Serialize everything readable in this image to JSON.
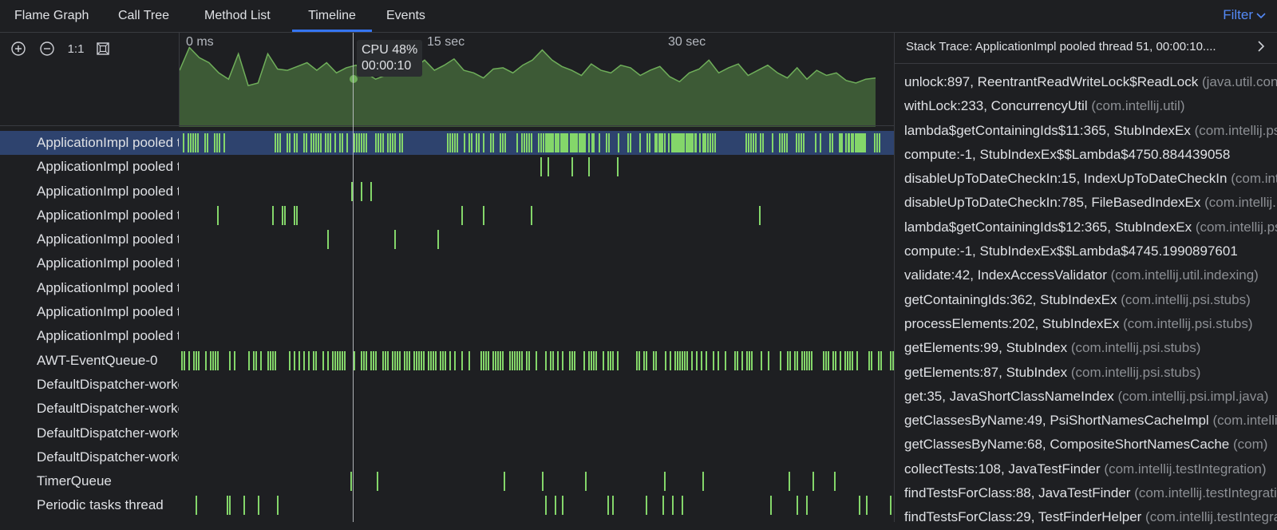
{
  "tabs": [
    {
      "label": "Flame Graph"
    },
    {
      "label": "Call Tree"
    },
    {
      "label": "Method List"
    },
    {
      "label": "Timeline",
      "active": true
    },
    {
      "label": "Events"
    }
  ],
  "filter_label": "Filter",
  "toolbar": {
    "zoom_in_icon": "plus-circle-icon",
    "zoom_out_icon": "minus-circle-icon",
    "actual_size": "1:1",
    "fit_icon": "fit-screen-icon"
  },
  "timeline": {
    "axis": {
      "start": "0 ms",
      "mid": "15 sec",
      "end": "30 sec"
    },
    "tooltip": {
      "cpu": "CPU 48%",
      "time": "00:00:10"
    },
    "cpu_series": [
      42,
      60,
      52,
      48,
      40,
      35,
      55,
      30,
      32,
      55,
      43,
      42,
      45,
      48,
      42,
      48,
      40,
      44,
      46,
      40,
      35,
      38,
      42,
      43,
      44,
      50,
      42,
      46,
      51,
      42,
      40,
      36,
      43,
      44,
      40,
      46,
      50,
      58,
      50,
      45,
      42,
      38,
      47,
      42,
      40,
      46,
      44,
      38,
      42,
      45,
      37,
      33,
      40,
      43,
      50,
      40,
      44,
      47,
      38,
      42,
      46,
      40,
      36,
      44,
      35,
      42,
      38,
      40,
      34,
      32,
      35,
      36
    ],
    "colors": {
      "fill": "#3d5a36",
      "line": "#6fae5a",
      "bar": "#84d66a",
      "selected_row": "#2e436e"
    }
  },
  "threads": [
    {
      "name": "ApplicationImpl pooled thread",
      "selected": true
    },
    {
      "name": "ApplicationImpl pooled thread"
    },
    {
      "name": "ApplicationImpl pooled thread"
    },
    {
      "name": "ApplicationImpl pooled thread"
    },
    {
      "name": "ApplicationImpl pooled thread"
    },
    {
      "name": "ApplicationImpl pooled thread"
    },
    {
      "name": "ApplicationImpl pooled thread"
    },
    {
      "name": "ApplicationImpl pooled thread"
    },
    {
      "name": "ApplicationImpl pooled thread"
    },
    {
      "name": "AWT-EventQueue-0"
    },
    {
      "name": "DefaultDispatcher-worker"
    },
    {
      "name": "DefaultDispatcher-worker"
    },
    {
      "name": "DefaultDispatcher-worker"
    },
    {
      "name": "DefaultDispatcher-worker"
    },
    {
      "name": "TimerQueue"
    },
    {
      "name": "Periodic tasks thread"
    }
  ],
  "stack_trace": {
    "title": "Stack Trace: ApplicationImpl pooled thread 51, 00:00:10....",
    "frames": [
      {
        "method": "unlock:897, ReentrantReadWriteLock$ReadLock",
        "pkg": "(java.util.concurrent.locks)"
      },
      {
        "method": "withLock:233, ConcurrencyUtil",
        "pkg": "(com.intellij.util)"
      },
      {
        "method": "lambda$getContainingIds$11:365, StubIndexEx",
        "pkg": "(com.intellij.psi.stubs)"
      },
      {
        "method": "compute:-1, StubIndexEx$$Lambda$4750.884439058",
        "pkg": ""
      },
      {
        "method": "disableUpToDateCheckIn:15, IndexUpToDateCheckIn",
        "pkg": "(com.intellij)"
      },
      {
        "method": "disableUpToDateCheckIn:785, FileBasedIndexEx",
        "pkg": "(com.intellij.util)"
      },
      {
        "method": "lambda$getContainingIds$12:365, StubIndexEx",
        "pkg": "(com.intellij.psi)"
      },
      {
        "method": "compute:-1, StubIndexEx$$Lambda$4745.1990897601",
        "pkg": ""
      },
      {
        "method": "validate:42, IndexAccessValidator",
        "pkg": "(com.intellij.util.indexing)"
      },
      {
        "method": "getContainingIds:362, StubIndexEx",
        "pkg": "(com.intellij.psi.stubs)"
      },
      {
        "method": "processElements:202, StubIndexEx",
        "pkg": "(com.intellij.psi.stubs)"
      },
      {
        "method": "getElements:99, StubIndex",
        "pkg": "(com.intellij.psi.stubs)"
      },
      {
        "method": "getElements:87, StubIndex",
        "pkg": "(com.intellij.psi.stubs)"
      },
      {
        "method": "get:35, JavaShortClassNameIndex",
        "pkg": "(com.intellij.psi.impl.java)"
      },
      {
        "method": "getClassesByName:49, PsiShortNamesCacheImpl",
        "pkg": "(com.intellij)"
      },
      {
        "method": "getClassesByName:68, CompositeShortNamesCache",
        "pkg": "(com)"
      },
      {
        "method": "collectTests:108, JavaTestFinder",
        "pkg": "(com.intellij.testIntegration)"
      },
      {
        "method": "findTestsForClass:88, JavaTestFinder",
        "pkg": "(com.intellij.testIntegration)"
      },
      {
        "method": "findTestsForClass:29, TestFinderHelper",
        "pkg": "(com.intellij.testIntegration)"
      }
    ]
  }
}
